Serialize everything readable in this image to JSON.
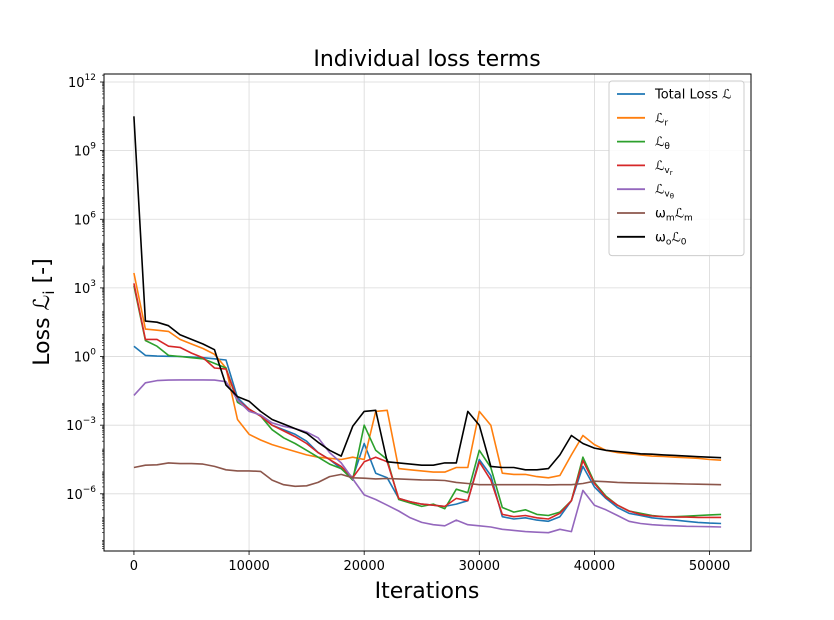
{
  "chart_data": {
    "type": "line",
    "title": "Individual loss terms",
    "xlabel": "Iterations",
    "ylabel": "Loss ℒ",
    "ylabel_subscript": "i",
    "ylabel_unit": " [-]",
    "yscale": "log",
    "xlim": [
      -2600,
      53600
    ],
    "ylim_log10": [
      -8.5,
      12.35
    ],
    "x_ticks": [
      0,
      10000,
      20000,
      30000,
      40000,
      50000
    ],
    "x_tick_labels": [
      "0",
      "10000",
      "20000",
      "30000",
      "40000",
      "50000"
    ],
    "y_ticks_log10": [
      -6,
      -3,
      0,
      3,
      6,
      9,
      12
    ],
    "y_tick_labels": [
      {
        "base": "10",
        "exp": "−6"
      },
      {
        "base": "10",
        "exp": "−3"
      },
      {
        "base": "10",
        "exp": "0"
      },
      {
        "base": "10",
        "exp": "3"
      },
      {
        "base": "10",
        "exp": "6"
      },
      {
        "base": "10",
        "exp": "9"
      },
      {
        "base": "10",
        "exp": "12"
      }
    ],
    "grid": true,
    "legend_position": "top-right",
    "series": [
      {
        "name": "Total Loss",
        "legend": {
          "main": "Total Loss ℒ",
          "sub": ""
        },
        "color": "#1f77b4",
        "x": [
          0,
          1000,
          2000,
          3000,
          4000,
          5000,
          6000,
          7000,
          8000,
          9000,
          10000,
          11000,
          12000,
          13000,
          14000,
          15000,
          16000,
          17000,
          18000,
          19000,
          20000,
          21000,
          22000,
          23000,
          24000,
          25000,
          26000,
          27000,
          28000,
          29000,
          30000,
          31000,
          32000,
          33000,
          34000,
          35000,
          36000,
          37000,
          38000,
          39000,
          40000,
          41000,
          42000,
          43000,
          44000,
          45000,
          46000,
          47000,
          48000,
          49000,
          50000,
          51000
        ],
        "log10y": [
          0.45,
          0.05,
          0.02,
          0.01,
          0.0,
          -0.02,
          -0.05,
          -0.1,
          -0.15,
          -1.8,
          -2.3,
          -2.6,
          -3.0,
          -3.2,
          -3.4,
          -3.7,
          -4.2,
          -4.5,
          -4.9,
          -5.3,
          -3.8,
          -5.1,
          -5.3,
          -6.2,
          -6.35,
          -6.45,
          -6.5,
          -6.55,
          -6.45,
          -6.3,
          -4.5,
          -5.2,
          -7.0,
          -7.1,
          -7.05,
          -7.15,
          -7.2,
          -7.0,
          -6.3,
          -4.8,
          -5.7,
          -6.2,
          -6.6,
          -6.85,
          -6.95,
          -7.05,
          -7.1,
          -7.15,
          -7.2,
          -7.25,
          -7.28,
          -7.3
        ]
      },
      {
        "name": "L_r",
        "legend": {
          "main": "ℒ",
          "sub": "r"
        },
        "color": "#ff7f0e",
        "x": [
          0,
          1000,
          2000,
          3000,
          4000,
          5000,
          6000,
          7000,
          8000,
          9000,
          10000,
          11000,
          12000,
          13000,
          14000,
          15000,
          16000,
          17000,
          18000,
          19000,
          20000,
          21000,
          22000,
          23000,
          24000,
          25000,
          26000,
          27000,
          28000,
          29000,
          30000,
          31000,
          32000,
          33000,
          34000,
          35000,
          36000,
          37000,
          38000,
          39000,
          40000,
          41000,
          42000,
          43000,
          44000,
          45000,
          46000,
          47000,
          48000,
          49000,
          50000,
          51000
        ],
        "log10y": [
          3.65,
          1.2,
          1.15,
          1.1,
          0.75,
          0.55,
          0.35,
          0.1,
          -0.5,
          -2.75,
          -3.4,
          -3.65,
          -3.85,
          -4.0,
          -4.15,
          -4.3,
          -4.4,
          -4.45,
          -4.5,
          -4.4,
          -4.5,
          -2.4,
          -2.35,
          -4.9,
          -4.95,
          -5.0,
          -5.05,
          -5.05,
          -4.85,
          -4.85,
          -2.4,
          -3.0,
          -5.1,
          -5.15,
          -5.15,
          -5.25,
          -5.3,
          -5.2,
          -4.3,
          -3.45,
          -3.85,
          -4.1,
          -4.2,
          -4.25,
          -4.3,
          -4.35,
          -4.37,
          -4.4,
          -4.42,
          -4.45,
          -4.5,
          -4.53
        ]
      },
      {
        "name": "L_theta",
        "legend": {
          "main": "ℒ",
          "sub": "θ"
        },
        "color": "#2ca02c",
        "x": [
          0,
          1000,
          2000,
          3000,
          4000,
          5000,
          6000,
          7000,
          8000,
          9000,
          10000,
          11000,
          12000,
          13000,
          14000,
          15000,
          16000,
          17000,
          18000,
          19000,
          20000,
          21000,
          22000,
          23000,
          24000,
          25000,
          26000,
          27000,
          28000,
          29000,
          30000,
          31000,
          32000,
          33000,
          34000,
          35000,
          36000,
          37000,
          38000,
          39000,
          40000,
          41000,
          42000,
          43000,
          44000,
          45000,
          46000,
          47000,
          48000,
          49000,
          50000,
          51000
        ],
        "log10y": [
          3.1,
          0.7,
          0.45,
          0.05,
          0.0,
          -0.05,
          -0.1,
          -0.3,
          -0.5,
          -2.0,
          -2.3,
          -2.6,
          -3.2,
          -3.55,
          -3.8,
          -4.1,
          -4.4,
          -4.7,
          -4.9,
          -5.4,
          -3.0,
          -4.1,
          -4.5,
          -6.25,
          -6.4,
          -6.55,
          -6.45,
          -6.65,
          -5.8,
          -5.95,
          -4.1,
          -4.85,
          -6.6,
          -6.8,
          -6.7,
          -6.9,
          -6.95,
          -6.8,
          -6.3,
          -4.4,
          -5.5,
          -6.1,
          -6.5,
          -6.75,
          -6.85,
          -6.95,
          -7.0,
          -7.0,
          -6.98,
          -6.95,
          -6.92,
          -6.9
        ]
      },
      {
        "name": "L_v_r",
        "legend": {
          "main": "ℒ",
          "sub": "v",
          "subsub": "r"
        },
        "color": "#d62728",
        "x": [
          0,
          1000,
          2000,
          3000,
          4000,
          5000,
          6000,
          7000,
          8000,
          9000,
          10000,
          11000,
          12000,
          13000,
          14000,
          15000,
          16000,
          17000,
          18000,
          19000,
          20000,
          21000,
          22000,
          23000,
          24000,
          25000,
          26000,
          27000,
          28000,
          29000,
          30000,
          31000,
          32000,
          33000,
          34000,
          35000,
          36000,
          37000,
          38000,
          39000,
          40000,
          41000,
          42000,
          43000,
          44000,
          45000,
          46000,
          47000,
          48000,
          49000,
          50000,
          51000
        ],
        "log10y": [
          3.2,
          0.75,
          0.75,
          0.45,
          0.4,
          0.15,
          -0.05,
          -0.5,
          -0.55,
          -1.9,
          -2.3,
          -2.6,
          -3.0,
          -3.25,
          -3.5,
          -3.8,
          -4.2,
          -4.5,
          -4.8,
          -5.3,
          -4.6,
          -4.4,
          -4.6,
          -6.2,
          -6.35,
          -6.45,
          -6.5,
          -6.55,
          -6.2,
          -6.3,
          -4.6,
          -5.4,
          -6.9,
          -7.0,
          -6.95,
          -7.05,
          -7.1,
          -6.85,
          -6.3,
          -4.55,
          -5.55,
          -6.15,
          -6.5,
          -6.75,
          -6.9,
          -6.97,
          -7.0,
          -7.02,
          -7.02,
          -7.03,
          -7.03,
          -7.03
        ]
      },
      {
        "name": "L_v_theta",
        "legend": {
          "main": "ℒ",
          "sub": "v",
          "subsub": "θ"
        },
        "color": "#9467bd",
        "x": [
          0,
          1000,
          2000,
          3000,
          4000,
          5000,
          6000,
          7000,
          8000,
          9000,
          10000,
          11000,
          12000,
          13000,
          14000,
          15000,
          16000,
          17000,
          18000,
          19000,
          20000,
          21000,
          22000,
          23000,
          24000,
          25000,
          26000,
          27000,
          28000,
          29000,
          30000,
          31000,
          32000,
          33000,
          34000,
          35000,
          36000,
          37000,
          38000,
          39000,
          40000,
          41000,
          42000,
          43000,
          44000,
          45000,
          46000,
          47000,
          48000,
          49000,
          50000,
          51000
        ],
        "log10y": [
          -1.7,
          -1.15,
          -1.05,
          -1.03,
          -1.02,
          -1.02,
          -1.02,
          -1.03,
          -1.1,
          -1.9,
          -2.4,
          -2.55,
          -2.9,
          -3.05,
          -3.15,
          -3.3,
          -3.55,
          -4.2,
          -4.65,
          -5.35,
          -6.05,
          -6.25,
          -6.5,
          -6.75,
          -7.05,
          -7.25,
          -7.35,
          -7.4,
          -7.15,
          -7.35,
          -7.4,
          -7.45,
          -7.55,
          -7.6,
          -7.65,
          -7.68,
          -7.7,
          -7.55,
          -7.65,
          -5.85,
          -6.5,
          -6.7,
          -6.95,
          -7.2,
          -7.3,
          -7.35,
          -7.38,
          -7.4,
          -7.42,
          -7.43,
          -7.44,
          -7.45
        ]
      },
      {
        "name": "w_m L_m",
        "legend": {
          "main": "ω",
          "sub": "m",
          "main2": "ℒ",
          "sub2": "m"
        },
        "color": "#8c564b",
        "x": [
          0,
          1000,
          2000,
          3000,
          4000,
          5000,
          6000,
          7000,
          8000,
          9000,
          10000,
          11000,
          12000,
          13000,
          14000,
          15000,
          16000,
          17000,
          18000,
          19000,
          20000,
          21000,
          22000,
          23000,
          24000,
          25000,
          26000,
          27000,
          28000,
          29000,
          30000,
          31000,
          32000,
          33000,
          34000,
          35000,
          36000,
          37000,
          38000,
          39000,
          40000,
          41000,
          42000,
          43000,
          44000,
          45000,
          46000,
          47000,
          48000,
          49000,
          50000,
          51000
        ],
        "log10y": [
          -4.85,
          -4.75,
          -4.73,
          -4.65,
          -4.68,
          -4.68,
          -4.7,
          -4.8,
          -4.95,
          -5.0,
          -5.0,
          -5.02,
          -5.4,
          -5.6,
          -5.67,
          -5.65,
          -5.5,
          -5.25,
          -5.15,
          -5.3,
          -5.32,
          -5.35,
          -5.33,
          -5.35,
          -5.37,
          -5.39,
          -5.4,
          -5.42,
          -5.5,
          -5.55,
          -5.6,
          -5.6,
          -5.6,
          -5.6,
          -5.6,
          -5.6,
          -5.61,
          -5.6,
          -5.6,
          -5.55,
          -5.45,
          -5.47,
          -5.5,
          -5.52,
          -5.53,
          -5.54,
          -5.55,
          -5.56,
          -5.57,
          -5.58,
          -5.59,
          -5.6
        ]
      },
      {
        "name": "w_o L_0",
        "legend": {
          "main": "ω",
          "sub": "o",
          "main2": "ℒ",
          "sub2": "0"
        },
        "color": "#000000",
        "x": [
          0,
          1000,
          2000,
          3000,
          4000,
          5000,
          6000,
          7000,
          8000,
          9000,
          10000,
          11000,
          12000,
          13000,
          14000,
          15000,
          16000,
          17000,
          18000,
          19000,
          20000,
          21000,
          22000,
          23000,
          24000,
          25000,
          26000,
          27000,
          28000,
          29000,
          30000,
          31000,
          32000,
          33000,
          34000,
          35000,
          36000,
          37000,
          38000,
          39000,
          40000,
          41000,
          42000,
          43000,
          44000,
          45000,
          46000,
          47000,
          48000,
          49000,
          50000,
          51000
        ],
        "log10y": [
          10.5,
          1.55,
          1.5,
          1.35,
          0.95,
          0.75,
          0.55,
          0.3,
          -1.25,
          -1.75,
          -1.95,
          -2.4,
          -2.75,
          -2.95,
          -3.15,
          -3.35,
          -3.75,
          -4.1,
          -4.35,
          -3.05,
          -2.4,
          -2.35,
          -4.6,
          -4.65,
          -4.7,
          -4.75,
          -4.75,
          -4.65,
          -4.65,
          -2.4,
          -3.0,
          -4.8,
          -4.85,
          -4.85,
          -4.95,
          -4.95,
          -4.9,
          -4.3,
          -3.45,
          -3.8,
          -4.0,
          -4.1,
          -4.15,
          -4.2,
          -4.25,
          -4.27,
          -4.3,
          -4.32,
          -4.35,
          -4.38,
          -4.4,
          -4.42
        ]
      }
    ]
  }
}
